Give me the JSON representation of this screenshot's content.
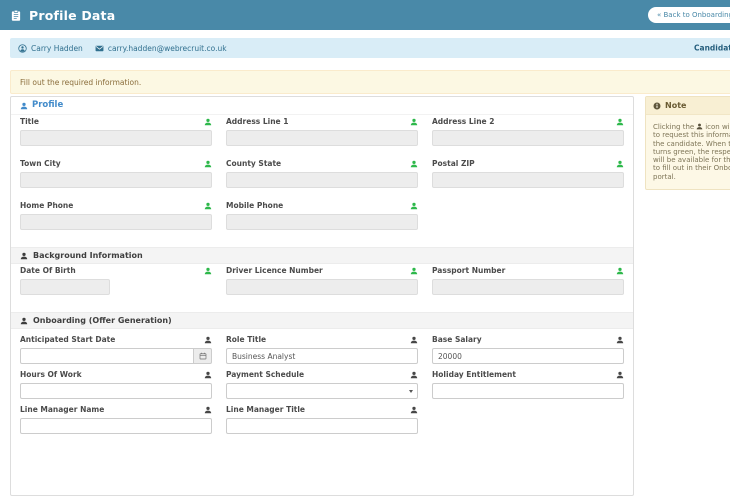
{
  "header": {
    "title": "Profile Data",
    "back_button": "« Back to Onboarding Process"
  },
  "candidate_bar": {
    "name": "Carry Hadden",
    "email": "carry.hadden@webrecruit.co.uk",
    "right_label": "Candidate"
  },
  "alert": {
    "message": "Fill out the required information."
  },
  "sections": [
    {
      "title": "Profile",
      "header_style": "link",
      "field_style": "locked",
      "rows": [
        [
          {
            "label": "Title",
            "request_icon": "green"
          },
          {
            "label": "Address Line 1",
            "request_icon": "green"
          },
          {
            "label": "Address Line 2",
            "request_icon": "green"
          }
        ],
        [
          {
            "label": "Town City",
            "request_icon": "green"
          },
          {
            "label": "County State",
            "request_icon": "green"
          },
          {
            "label": "Postal ZIP",
            "request_icon": "green"
          }
        ],
        [
          {
            "label": "Home Phone",
            "request_icon": "green"
          },
          {
            "label": "Mobile Phone",
            "request_icon": "green"
          },
          null
        ]
      ]
    },
    {
      "title": "Background Information",
      "header_style": "bar",
      "field_style": "locked",
      "rows": [
        [
          {
            "label": "Date Of Birth",
            "request_icon": "green",
            "small": true
          },
          {
            "label": "Driver Licence Number",
            "request_icon": "green"
          },
          {
            "label": "Passport Number",
            "request_icon": "green"
          }
        ]
      ]
    },
    {
      "title": "Onboarding (Offer Generation)",
      "header_style": "bar",
      "field_style": "editable",
      "rows": [
        [
          {
            "label": "Anticipated Start Date",
            "request_icon": "dark",
            "type": "date",
            "value": ""
          },
          {
            "label": "Role Title",
            "request_icon": "dark",
            "type": "text",
            "value": "Business Analyst"
          },
          {
            "label": "Base Salary",
            "request_icon": "dark",
            "type": "text",
            "value": "20000"
          }
        ],
        [
          {
            "label": "Hours Of Work",
            "request_icon": "dark",
            "type": "text",
            "value": ""
          },
          {
            "label": "Payment Schedule",
            "request_icon": "dark",
            "type": "select",
            "value": ""
          },
          {
            "label": "Holiday Entitlement",
            "request_icon": "dark",
            "type": "text",
            "value": ""
          }
        ],
        [
          {
            "label": "Line Manager Name",
            "request_icon": "dark",
            "type": "text",
            "value": ""
          },
          {
            "label": "Line Manager Title",
            "request_icon": "dark",
            "type": "text",
            "value": ""
          },
          null
        ]
      ]
    }
  ],
  "note": {
    "title": "Note",
    "body_line1_prefix": "Clicking the",
    "body_line1_suffix": "icon will allow you",
    "body_lines": [
      "to request this information from",
      "the candidate. When the icon",
      "turns green, the respective field",
      "will be available for the candidate",
      "to fill out in their Onboarding",
      "portal."
    ]
  },
  "colors": {
    "header_teal": "#4989a8",
    "info_bar_bg": "#d9edf7",
    "info_text": "#31708f",
    "alert_bg": "#fcf8e3",
    "alert_text": "#8a6d3b",
    "section_link_blue": "#428bca",
    "request_granted_green": "#2eb84b",
    "note_bg": "#fdf8e6"
  }
}
